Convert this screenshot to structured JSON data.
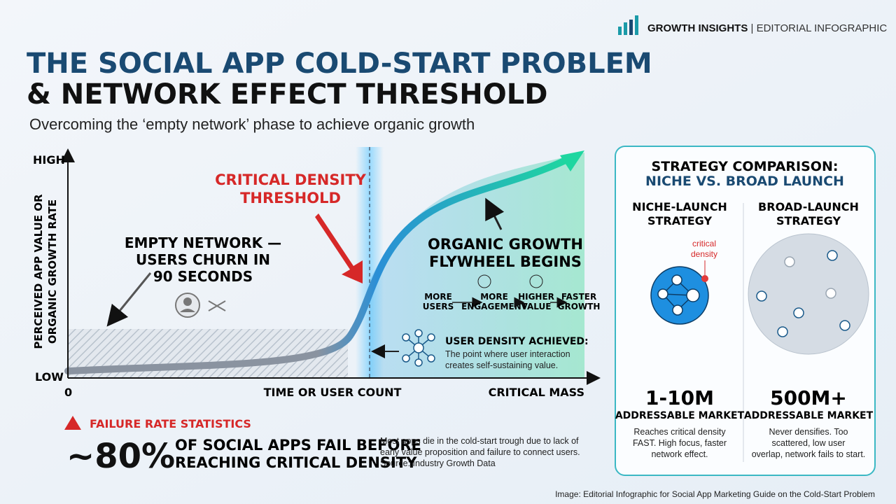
{
  "header": {
    "brand": "GROWTH INSIGHTS",
    "brand_sub": "| EDITORIAL INFOGRAPHIC",
    "title_lines": [
      "THE SOCIAL APP COLD-START PROBLEM",
      "& NETWORK EFFECT THRESHOLD"
    ],
    "subtitle": "Overcoming the ‘empty network’ phase to achieve organic growth"
  },
  "diagram": {
    "y_axis_label": [
      "PERCEIVED APP VALUE OR",
      "ORGANIC GROWTH RATE"
    ],
    "y_high": "HIGH",
    "y_low": "LOW",
    "x_origin": "0",
    "x_axis_label": "TIME OR USER COUNT",
    "x_end": "CRITICAL MASS",
    "threshold": [
      "CRITICAL DENSITY",
      "THRESHOLD"
    ],
    "empty_network": [
      "EMPTY NETWORK —",
      "USERS CHURN IN",
      "90 SECONDS"
    ],
    "organic": [
      "ORGANIC GROWTH",
      "FLYWHEEL BEGINS"
    ],
    "flywheel": [
      [
        "MORE",
        "USERS"
      ],
      [
        "MORE",
        "ENGAGEMENT"
      ],
      [
        "HIGHER",
        "VALUE"
      ],
      [
        "FASTER",
        "GROWTH"
      ]
    ],
    "density": {
      "title": "USER DENSITY ACHIEVED:",
      "text": [
        "The point where user interaction",
        "creates self-sustaining value."
      ]
    }
  },
  "failure": {
    "heading": "FAILURE RATE STATISTICS",
    "stat": "~80%",
    "stat_text": [
      "OF SOCIAL APPS FAIL BEFORE",
      "REACHING CRITICAL DENSITY"
    ],
    "note": [
      "Most apps die in the cold-start trough due to lack of",
      "early value proposition and failure to connect users.",
      "Source: Industry Growth Data"
    ]
  },
  "comparison": {
    "title": "STRATEGY COMPARISON:",
    "subtitle": "NICHE VS. BROAD LAUNCH",
    "columns": [
      {
        "heading": [
          "NICHE-LAUNCH",
          "STRATEGY"
        ],
        "marker": [
          "critical",
          "density"
        ],
        "market": "1-10M",
        "market_label": "ADDRESSABLE MARKET",
        "desc": [
          "Reaches critical density",
          "FAST. High focus, faster",
          "network effect."
        ]
      },
      {
        "heading": [
          "BROAD-LAUNCH",
          "STRATEGY"
        ],
        "market": "500M+",
        "market_label": "ADDRESSABLE MARKET",
        "desc": [
          "Never densifies. Too",
          "scattered, low user",
          "overlap, network fails to start."
        ]
      }
    ]
  },
  "footer": {
    "caption": "Image: Editorial Infographic for Social App Marketing Guide on the Cold-Start Problem"
  }
}
